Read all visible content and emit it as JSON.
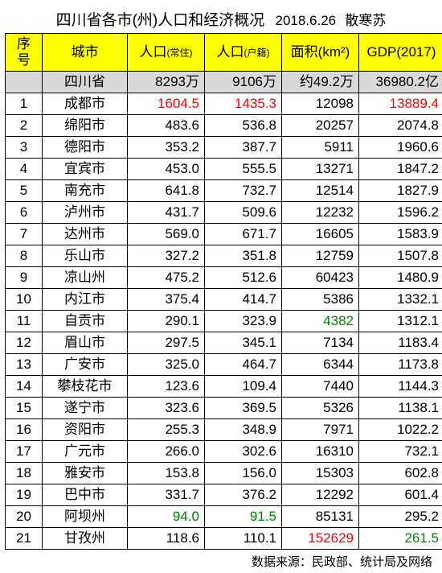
{
  "title": {
    "main": "四川省各市(州)人口和经济概况",
    "date": "2018.6.26",
    "author": "散寒苏"
  },
  "headers": {
    "idx": "序号",
    "city": "城市",
    "pop1_main": "人口",
    "pop1_sub": "(常住)",
    "pop2_main": "人口",
    "pop2_sub": "(户籍)",
    "area": "面积(km²)",
    "gdp": "GDP(2017)"
  },
  "summary": {
    "city": "四川省",
    "pop1": "8293万",
    "pop2": "9106万",
    "area": "约49.2万",
    "gdp": "36980.2亿"
  },
  "rows": [
    {
      "idx": "1",
      "city": "成都市",
      "pop1": "1604.5",
      "pop2": "1435.3",
      "area": "12098",
      "gdp": "13889.4",
      "pop1_c": "red",
      "pop2_c": "red",
      "gdp_c": "red"
    },
    {
      "idx": "2",
      "city": "绵阳市",
      "pop1": "483.6",
      "pop2": "536.8",
      "area": "20257",
      "gdp": "2074.8"
    },
    {
      "idx": "3",
      "city": "德阳市",
      "pop1": "353.2",
      "pop2": "387.7",
      "area": "5911",
      "gdp": "1960.6"
    },
    {
      "idx": "4",
      "city": "宜宾市",
      "pop1": "453.0",
      "pop2": "555.5",
      "area": "13271",
      "gdp": "1847.2"
    },
    {
      "idx": "5",
      "city": "南充市",
      "pop1": "641.8",
      "pop2": "732.7",
      "area": "12514",
      "gdp": "1827.9"
    },
    {
      "idx": "6",
      "city": "泸州市",
      "pop1": "431.7",
      "pop2": "509.6",
      "area": "12232",
      "gdp": "1596.2"
    },
    {
      "idx": "7",
      "city": "达州市",
      "pop1": "569.0",
      "pop2": "671.7",
      "area": "16605",
      "gdp": "1583.9"
    },
    {
      "idx": "8",
      "city": "乐山市",
      "pop1": "327.2",
      "pop2": "351.8",
      "area": "12759",
      "gdp": "1507.8"
    },
    {
      "idx": "9",
      "city": "凉山州",
      "pop1": "475.2",
      "pop2": "512.6",
      "area": "60423",
      "gdp": "1480.9"
    },
    {
      "idx": "10",
      "city": "内江市",
      "pop1": "375.4",
      "pop2": "414.7",
      "area": "5386",
      "gdp": "1332.1"
    },
    {
      "idx": "11",
      "city": "自贡市",
      "pop1": "290.1",
      "pop2": "323.9",
      "area": "4382",
      "gdp": "1312.1",
      "area_c": "green"
    },
    {
      "idx": "12",
      "city": "眉山市",
      "pop1": "297.5",
      "pop2": "345.1",
      "area": "7134",
      "gdp": "1183.4"
    },
    {
      "idx": "13",
      "city": "广安市",
      "pop1": "325.0",
      "pop2": "464.7",
      "area": "6344",
      "gdp": "1173.8"
    },
    {
      "idx": "14",
      "city": "攀枝花市",
      "pop1": "123.6",
      "pop2": "109.4",
      "area": "7440",
      "gdp": "1144.3"
    },
    {
      "idx": "15",
      "city": "遂宁市",
      "pop1": "323.6",
      "pop2": "369.5",
      "area": "5326",
      "gdp": "1138.1"
    },
    {
      "idx": "16",
      "city": "资阳市",
      "pop1": "255.3",
      "pop2": "348.9",
      "area": "7971",
      "gdp": "1022.2"
    },
    {
      "idx": "17",
      "city": "广元市",
      "pop1": "266.0",
      "pop2": "302.6",
      "area": "16310",
      "gdp": "732.1"
    },
    {
      "idx": "18",
      "city": "雅安市",
      "pop1": "153.8",
      "pop2": "156.0",
      "area": "15303",
      "gdp": "602.8"
    },
    {
      "idx": "19",
      "city": "巴中市",
      "pop1": "331.7",
      "pop2": "376.2",
      "area": "12292",
      "gdp": "601.4"
    },
    {
      "idx": "20",
      "city": "阿坝州",
      "pop1": "94.0",
      "pop2": "91.5",
      "area": "85131",
      "gdp": "295.2",
      "pop1_c": "green",
      "pop2_c": "green"
    },
    {
      "idx": "21",
      "city": "甘孜州",
      "pop1": "118.6",
      "pop2": "110.1",
      "area": "152629",
      "gdp": "261.5",
      "area_c": "red",
      "gdp_c": "green"
    }
  ],
  "footer": "数据来源：民政部、统计局及网络"
}
